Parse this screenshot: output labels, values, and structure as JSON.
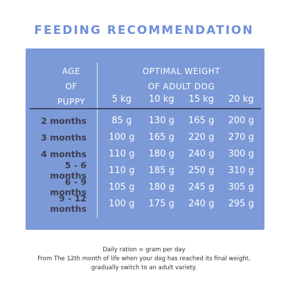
{
  "title": "FEEDING RECOMMENDATION",
  "table": {
    "age_header": [
      "AGE",
      "OF",
      "PUPPY"
    ],
    "weight_header": [
      "OPTIMAL WEIGHT",
      "OF ADULT DOG"
    ],
    "weights": [
      "5 kg",
      "10 kg",
      "15 kg",
      "20 kg"
    ],
    "rows": [
      {
        "age": "2 months",
        "values": [
          "85 g",
          "130 g",
          "165 g",
          "200 g"
        ]
      },
      {
        "age": "3 months",
        "values": [
          "100 g",
          "165 g",
          "220 g",
          "270 g"
        ]
      },
      {
        "age": "4 months",
        "values": [
          "110 g",
          "180 g",
          "240 g",
          "300 g"
        ]
      },
      {
        "age": "5 - 6 months",
        "values": [
          "110 g",
          "185 g",
          "250 g",
          "310 g"
        ]
      },
      {
        "age": "6 - 9 months",
        "values": [
          "105 g",
          "180 g",
          "245 g",
          "305 g"
        ]
      },
      {
        "age": "9 - 12 months",
        "values": [
          "100 g",
          "175 g",
          "240 g",
          "295 g"
        ]
      }
    ]
  },
  "footer": [
    "Daily ration = gram per day",
    "From The 12th month of life when your dog has reached its final weight,",
    "gradually switch to an adult variety."
  ],
  "colors": {
    "title": "#6f8fd8",
    "card": "#7c9ad7",
    "age_text": "#3d3d52",
    "header_text": "#ffffff"
  }
}
